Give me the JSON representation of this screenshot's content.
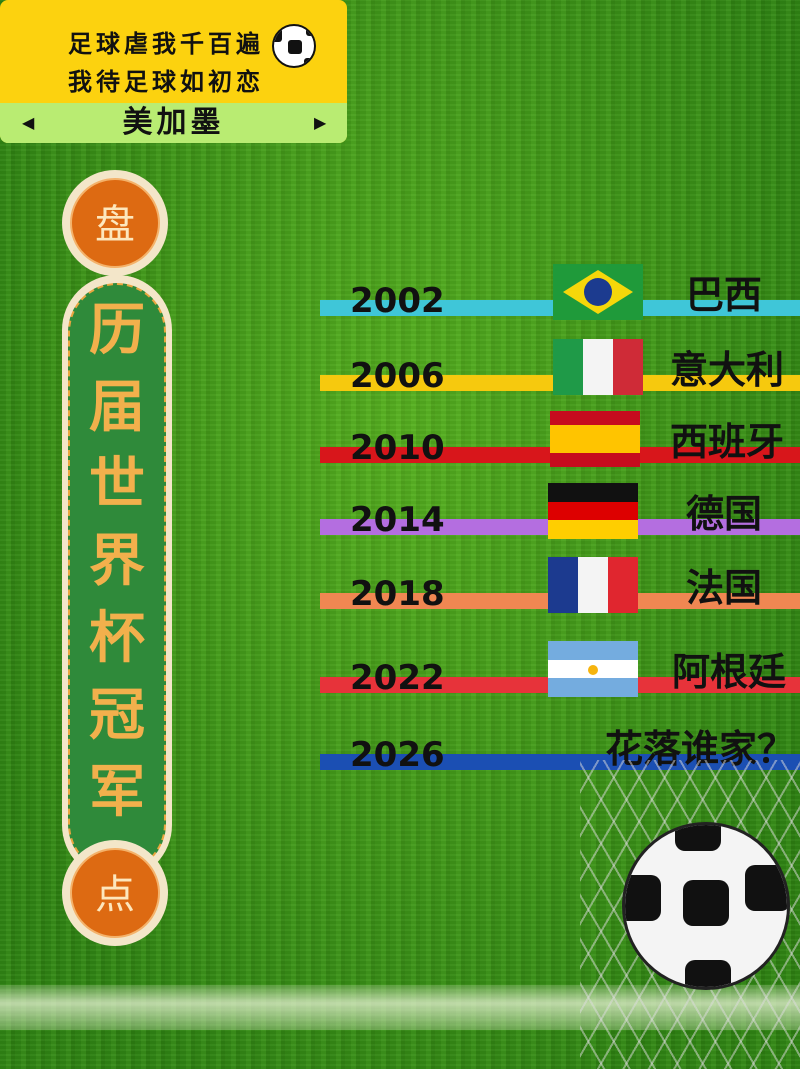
{
  "banner": {
    "line1": "足球虐我千百遍",
    "line2": "我待足球如初恋",
    "host": "美加墨",
    "left_arrow": "◀",
    "right_arrow": "▶"
  },
  "pillar": {
    "top": "盘",
    "title": [
      "历",
      "届",
      "世",
      "界",
      "杯",
      "冠",
      "军"
    ],
    "bottom": "点"
  },
  "timeline": [
    {
      "year": "2002",
      "country": "巴西",
      "color": "#3fc6d8",
      "flag": "brazil"
    },
    {
      "year": "2006",
      "country": "意大利",
      "color": "#f6c90e",
      "flag": "italy"
    },
    {
      "year": "2010",
      "country": "西班牙",
      "color": "#d8161b",
      "flag": "spain"
    },
    {
      "year": "2014",
      "country": "德国",
      "color": "#b46ee0",
      "flag": "germany"
    },
    {
      "year": "2018",
      "country": "法国",
      "color": "#f08752",
      "flag": "france"
    },
    {
      "year": "2022",
      "country": "阿根廷",
      "color": "#e7333a",
      "flag": "argentina"
    },
    {
      "year": "2026",
      "country": "花落谁家？",
      "color": "#1b4fb3",
      "flag": ""
    }
  ]
}
